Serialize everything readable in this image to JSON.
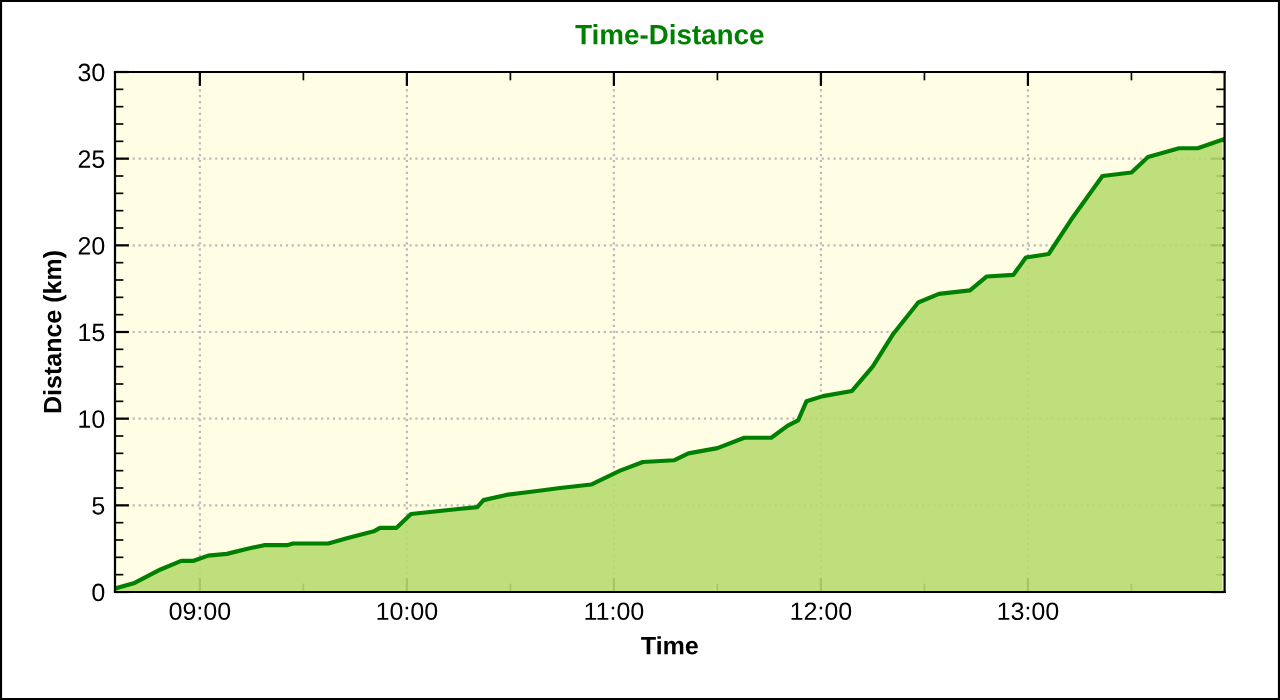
{
  "chart_data": {
    "type": "area",
    "title": "Time-Distance",
    "xlabel": "Time",
    "ylabel": "Distance (km)",
    "x": [
      8.59,
      8.68,
      8.81,
      8.91,
      8.97,
      9.04,
      9.13,
      9.23,
      9.31,
      9.42,
      9.45,
      9.62,
      9.71,
      9.84,
      9.87,
      9.95,
      10.02,
      10.1,
      10.26,
      10.34,
      10.37,
      10.48,
      10.61,
      10.74,
      10.89,
      11.03,
      11.14,
      11.29,
      11.36,
      11.5,
      11.63,
      11.76,
      11.84,
      11.89,
      11.93,
      12.01,
      12.15,
      12.25,
      12.35,
      12.47,
      12.57,
      12.72,
      12.8,
      12.93,
      12.99,
      13.1,
      13.21,
      13.36,
      13.5,
      13.58,
      13.73,
      13.82,
      13.94
    ],
    "series": [
      {
        "color": "#008000",
        "values": [
          0.2,
          0.5,
          1.3,
          1.8,
          1.8,
          2.1,
          2.2,
          2.5,
          2.7,
          2.7,
          2.8,
          2.8,
          3.1,
          3.5,
          3.7,
          3.7,
          4.5,
          4.6,
          4.8,
          4.9,
          5.3,
          5.6,
          5.8,
          6.0,
          6.2,
          7.0,
          7.5,
          7.6,
          8.0,
          8.3,
          8.9,
          8.9,
          9.6,
          9.9,
          11.0,
          11.3,
          11.6,
          13.0,
          14.9,
          16.7,
          17.2,
          17.4,
          18.2,
          18.3,
          19.3,
          19.5,
          21.5,
          24.0,
          24.2,
          25.1,
          25.6,
          25.6,
          26.1
        ]
      }
    ],
    "xlim": [
      8.59,
      13.95
    ],
    "xticks": [
      {
        "value": 9,
        "label": "09:00"
      },
      {
        "value": 9.5,
        "label": null
      },
      {
        "value": 10,
        "label": "10:00"
      },
      {
        "value": 10.5,
        "label": null
      },
      {
        "value": 11,
        "label": "11:00"
      },
      {
        "value": 11.5,
        "label": null
      },
      {
        "value": 12,
        "label": "12:00"
      },
      {
        "value": 12.5,
        "label": null
      },
      {
        "value": 13,
        "label": "13:00"
      },
      {
        "value": 13.5,
        "label": null
      }
    ],
    "ylim": [
      0,
      30
    ],
    "yticks": [
      0,
      5,
      10,
      15,
      20,
      25,
      30
    ],
    "grid": true
  }
}
